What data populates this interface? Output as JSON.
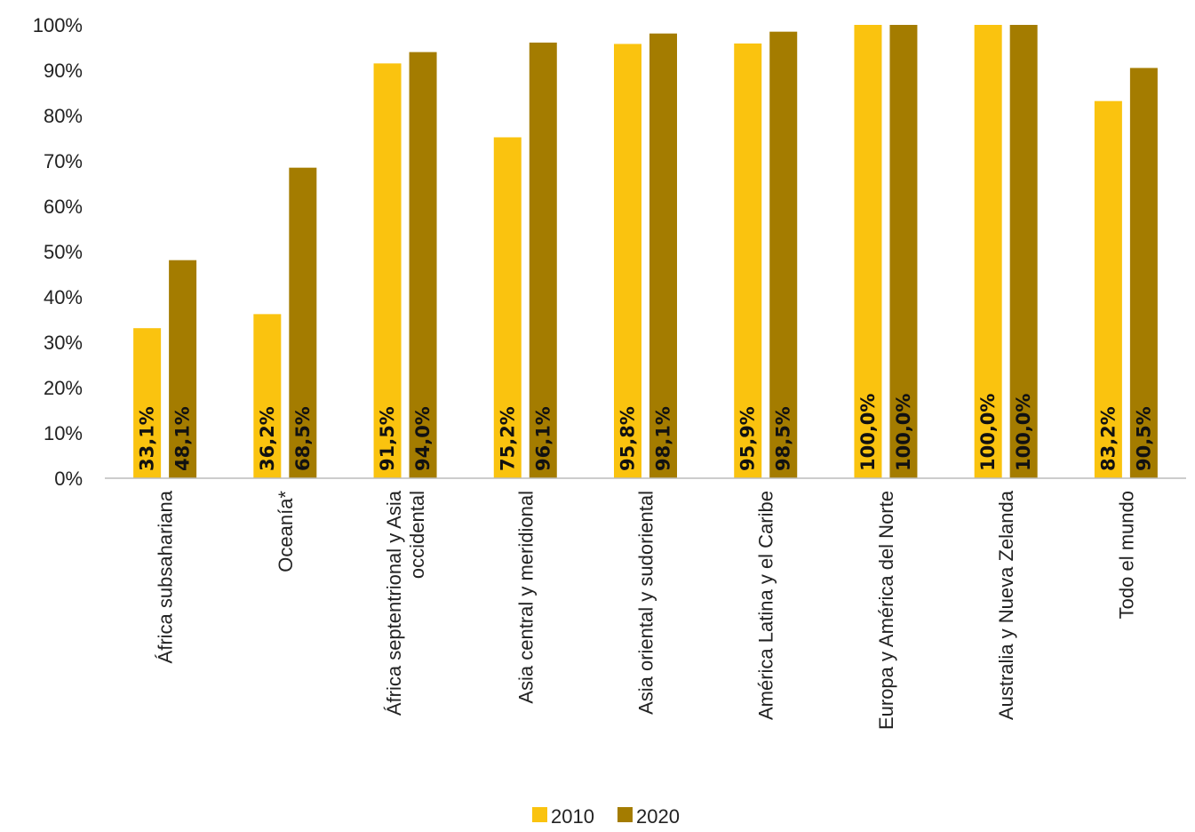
{
  "chart_data": {
    "type": "bar",
    "title": "",
    "xlabel": "",
    "ylabel": "",
    "ylim": [
      0,
      100
    ],
    "y_ticks": [
      "0%",
      "10%",
      "20%",
      "30%",
      "40%",
      "50%",
      "60%",
      "70%",
      "80%",
      "90%",
      "100%"
    ],
    "grid": false,
    "legend_position": "bottom-center",
    "categories": [
      [
        "África subsahariana"
      ],
      [
        "Oceanía*"
      ],
      [
        "África septentrional y Asia",
        "occidental"
      ],
      [
        "Asia central y meridional"
      ],
      [
        "Asia oriental y sudoriental"
      ],
      [
        "América Latina y el Caribe"
      ],
      [
        "Europa y América del Norte"
      ],
      [
        "Australia y Nueva Zelanda"
      ],
      [
        "Todo el mundo"
      ]
    ],
    "series": [
      {
        "name": "2010",
        "color": "#FAC30F",
        "values": [
          33.1,
          36.2,
          91.5,
          75.2,
          95.8,
          95.9,
          100.0,
          100.0,
          83.2
        ],
        "labels": [
          "33,1%",
          "36,2%",
          "91,5%",
          "75,2%",
          "95,8%",
          "95,9%",
          "100,0%",
          "100,0%",
          "83,2%"
        ]
      },
      {
        "name": "2020",
        "color": "#A47C00",
        "values": [
          48.1,
          68.5,
          94.0,
          96.1,
          98.1,
          98.5,
          100.0,
          100.0,
          90.5
        ],
        "labels": [
          "48,1%",
          "68,5%",
          "94,0%",
          "96,1%",
          "98,1%",
          "98,5%",
          "100,0%",
          "100,0%",
          "90,5%"
        ]
      }
    ]
  }
}
